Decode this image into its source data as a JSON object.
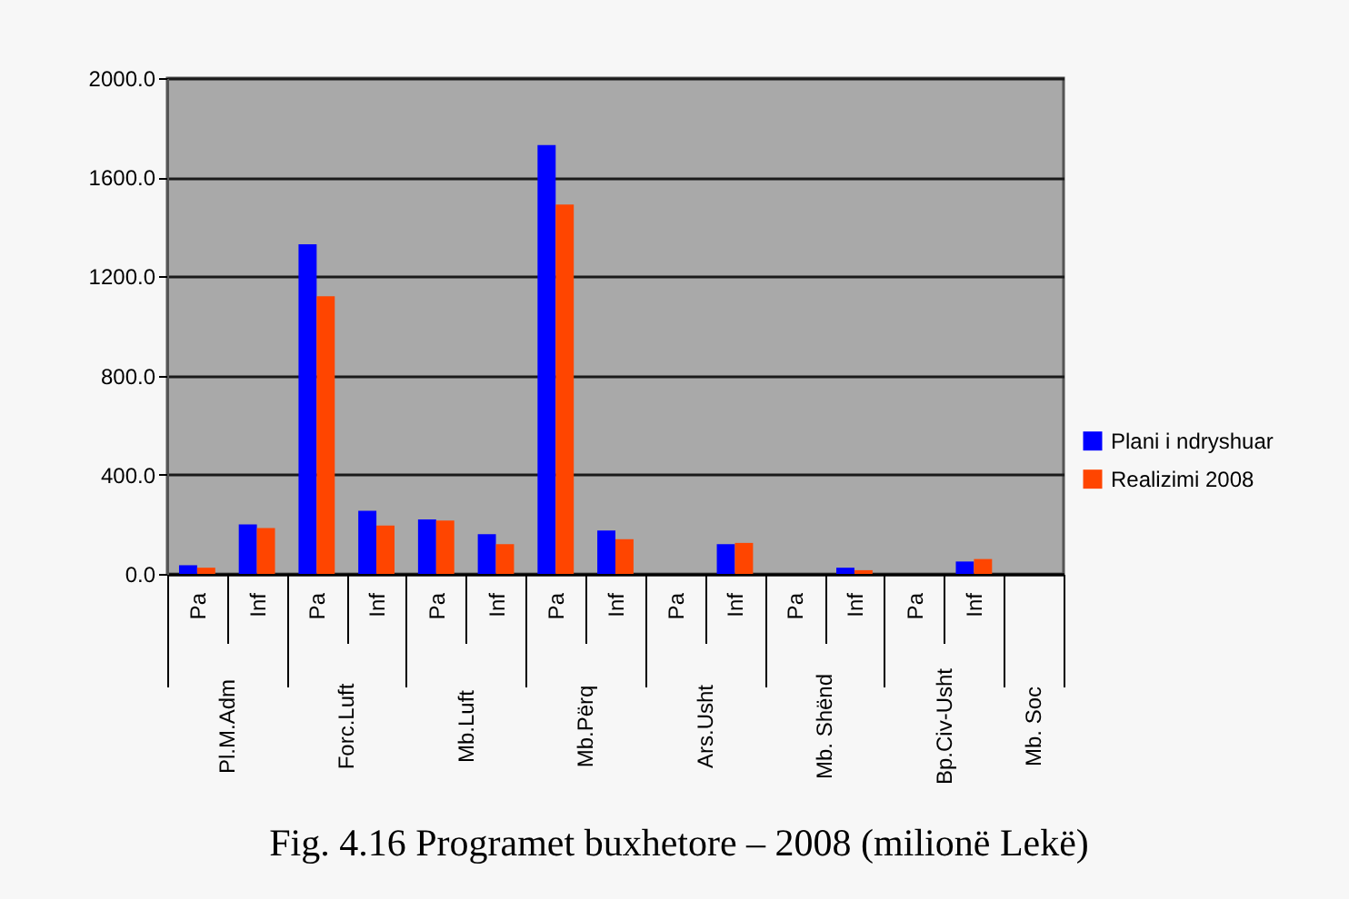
{
  "chart_data": {
    "type": "bar",
    "title": "Fig. 4.16 Programet buxhetore – 2008 (milionë Lekë)",
    "categories": [
      "Pa",
      "Inf",
      "Pa",
      "Inf",
      "Pa",
      "Inf",
      "Pa",
      "Inf",
      "Pa",
      "Inf",
      "Pa",
      "Inf",
      "Pa",
      "Inf",
      null
    ],
    "annotations": [
      "Pl.M.Adm",
      "Forc.Luft",
      "Mb.Luft",
      "Mb.Përq",
      "Ars.Usht",
      "Mb. Shënd",
      "Bp.Civ-Usht",
      "Mb. Soc"
    ],
    "series": [
      {
        "name": "Plani i ndryshuar",
        "color": "#0000ff",
        "values": [
          35,
          200,
          1330,
          255,
          220,
          160,
          1730,
          175,
          null,
          120,
          null,
          25,
          null,
          50,
          null
        ]
      },
      {
        "name": "Realizimi 2008",
        "color": "#ff4500",
        "values": [
          25,
          185,
          1120,
          195,
          215,
          120,
          1490,
          140,
          null,
          125,
          null,
          15,
          null,
          60,
          null
        ]
      }
    ],
    "ylim": [
      0,
      2000
    ],
    "yticks": [
      {
        "value": 0,
        "label": "0.0"
      },
      {
        "value": 400,
        "label": "400.0"
      },
      {
        "value": 800,
        "label": "800.0"
      },
      {
        "value": 1200,
        "label": "1200.0"
      },
      {
        "value": 1600,
        "label": "1600.0"
      },
      {
        "value": 2000,
        "label": "2000.0"
      }
    ],
    "grid": "y",
    "legend": "right"
  }
}
